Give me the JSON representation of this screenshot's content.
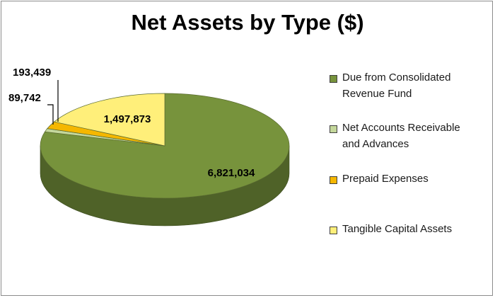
{
  "chart_data": {
    "type": "pie",
    "title": "Net Assets by Type ($)",
    "categories": [
      "Due from Consolidated Revenue Fund",
      "Net Accounts Receivable and Advances",
      "Prepaid Expenses",
      "Tangible Capital Assets"
    ],
    "values": [
      6821034,
      89742,
      193439,
      1497873
    ],
    "value_labels": [
      "6,821,034",
      "89,742",
      "193,439",
      "1,497,873"
    ],
    "colors": [
      "#77933c",
      "#c4d79b",
      "#f5b700",
      "#ffef7a"
    ],
    "side_colors": [
      "#4f6228",
      "#8a9a66",
      "#b38300",
      "#c9b84a"
    ],
    "legend_position": "right",
    "legend_lines": [
      [
        "Due from Consolidated",
        "Revenue Fund"
      ],
      [
        "Net Accounts Receivable",
        "and Advances"
      ],
      [
        "Prepaid Expenses"
      ],
      [
        "Tangible Capital Assets"
      ]
    ],
    "three_d": true
  }
}
